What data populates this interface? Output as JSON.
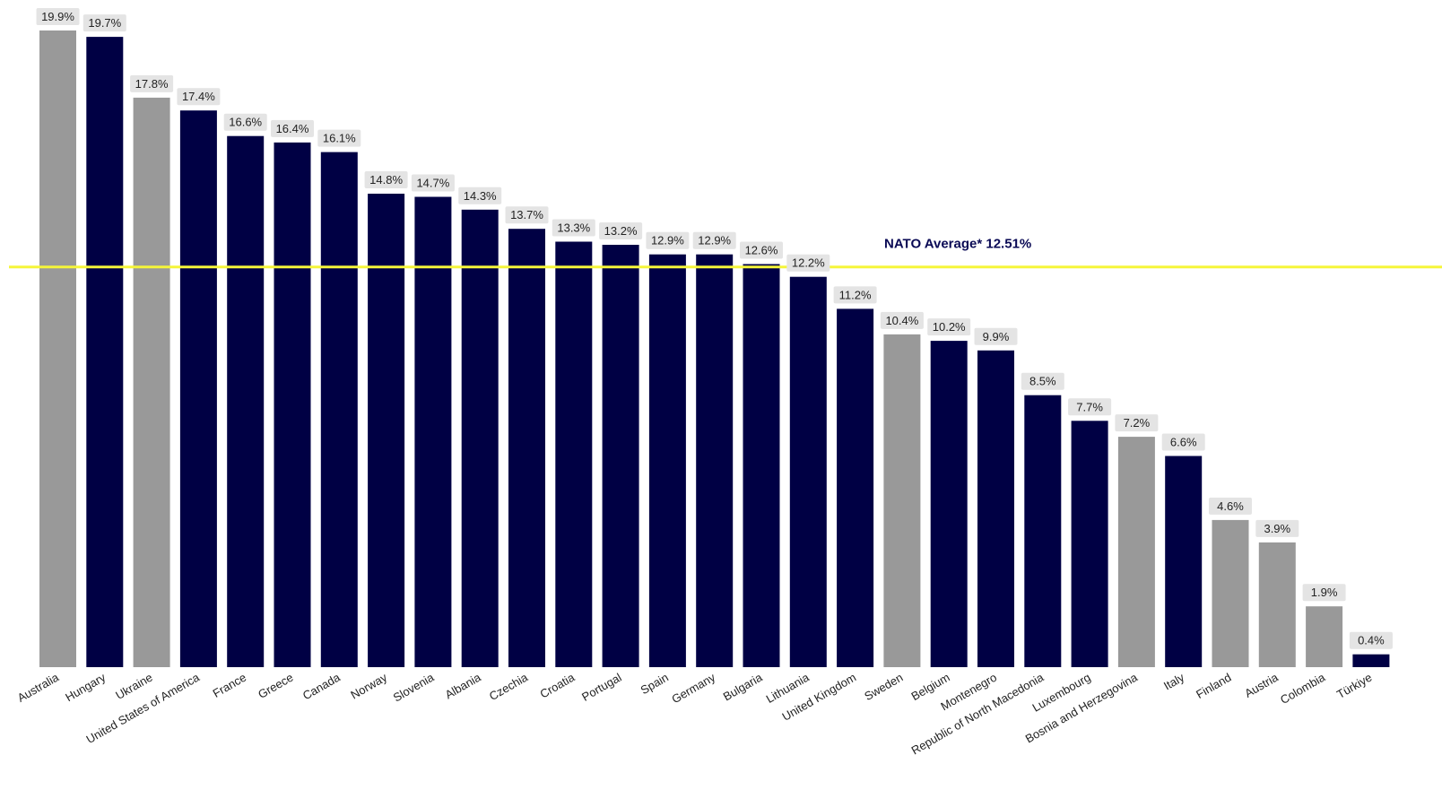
{
  "colors": {
    "nato_member": "#000044",
    "non_member": "#999999",
    "average_line": "#f5f53a",
    "label_background": "#e4e4e4"
  },
  "chart_data": {
    "type": "bar",
    "categories": [
      "Australia",
      "Hungary",
      "Ukraine",
      "United States of America",
      "France",
      "Greece",
      "Canada",
      "Norway",
      "Slovenia",
      "Albania",
      "Czechia",
      "Croatia",
      "Portugal",
      "Spain",
      "Germany",
      "Bulgaria",
      "Lithuania",
      "United Kingdom",
      "Sweden",
      "Belgium",
      "Montenegro",
      "Republic of North Macedonia",
      "Luxembourg",
      "Bosnia and Herzegovina",
      "Italy",
      "Finland",
      "Austria",
      "Colombia",
      "Türkiye"
    ],
    "values": [
      19.9,
      19.7,
      17.8,
      17.4,
      16.6,
      16.4,
      16.1,
      14.8,
      14.7,
      14.3,
      13.7,
      13.3,
      13.2,
      12.9,
      12.9,
      12.6,
      12.2,
      11.2,
      10.4,
      10.2,
      9.9,
      8.5,
      7.7,
      7.2,
      6.6,
      4.6,
      3.9,
      1.9,
      0.4
    ],
    "value_labels": [
      "19.9%",
      "19.7%",
      "17.8%",
      "17.4%",
      "16.6%",
      "16.4%",
      "16.1%",
      "14.8%",
      "14.7%",
      "14.3%",
      "13.7%",
      "13.3%",
      "13.2%",
      "12.9%",
      "12.9%",
      "12.6%",
      "12.2%",
      "11.2%",
      "10.4%",
      "10.2%",
      "9.9%",
      "8.5%",
      "7.7%",
      "7.2%",
      "6.6%",
      "4.6%",
      "3.9%",
      "1.9%",
      "0.4%"
    ],
    "bar_color_group": [
      "non_member",
      "nato_member",
      "non_member",
      "nato_member",
      "nato_member",
      "nato_member",
      "nato_member",
      "nato_member",
      "nato_member",
      "nato_member",
      "nato_member",
      "nato_member",
      "nato_member",
      "nato_member",
      "nato_member",
      "nato_member",
      "nato_member",
      "nato_member",
      "non_member",
      "nato_member",
      "nato_member",
      "nato_member",
      "nato_member",
      "non_member",
      "nato_member",
      "non_member",
      "non_member",
      "non_member",
      "nato_member"
    ],
    "reference_line": {
      "value": 12.51,
      "label": "NATO Average* 12.51%"
    },
    "ylim": [
      0,
      20
    ],
    "title": "",
    "xlabel": "",
    "ylabel": "",
    "grid": false,
    "legend": "none"
  }
}
